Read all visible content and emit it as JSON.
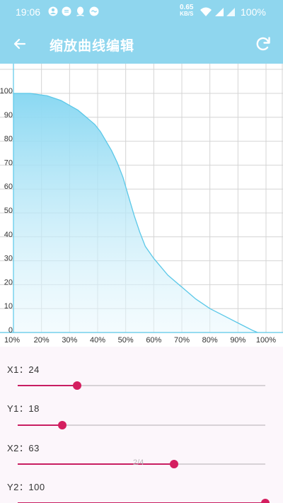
{
  "status_bar": {
    "time": "19:06",
    "net_speed_value": "0.65",
    "net_speed_unit": "KB/S",
    "battery": "100%"
  },
  "app_bar": {
    "title": "缩放曲线编辑",
    "back_icon": "arrow-left-icon",
    "refresh_icon": "refresh-icon"
  },
  "colors": {
    "accent": "#8fd6ee",
    "curve": "#5bc8e8",
    "slider": "#c81e62"
  },
  "chart_data": {
    "type": "area",
    "x_ticks": [
      "10%",
      "20%",
      "30%",
      "40%",
      "50%",
      "60%",
      "70%",
      "80%",
      "90%",
      "100%"
    ],
    "y_ticks": [
      "0",
      "10",
      "20",
      "30",
      "40",
      "50",
      "60",
      "70",
      "80",
      "90",
      "100"
    ],
    "xlim": [
      10,
      100
    ],
    "ylim": [
      0,
      100
    ],
    "grid": true,
    "series": [
      {
        "x": [
          10,
          16,
          22,
          27,
          30,
          33,
          36,
          39,
          41,
          43,
          45,
          47,
          49,
          51,
          53,
          55,
          57,
          60,
          65,
          70,
          75,
          80,
          85,
          90,
          95,
          97
        ],
        "y": [
          100,
          100,
          99,
          97,
          95,
          93,
          90,
          87,
          84,
          80,
          76,
          71,
          65,
          57,
          49,
          42,
          36,
          31,
          24,
          19,
          14,
          10,
          7,
          4,
          1,
          0
        ]
      }
    ]
  },
  "controls": {
    "x1": {
      "label": "X1：",
      "value": "24",
      "fraction": 0.24
    },
    "y1": {
      "label": "Y1：",
      "value": "18",
      "fraction": 0.18
    },
    "x2": {
      "label": "X2：",
      "value": "63",
      "fraction": 0.63
    },
    "y2": {
      "label": "Y2：",
      "value": "100",
      "fraction": 1.0
    }
  },
  "page_indicator": "2/4"
}
